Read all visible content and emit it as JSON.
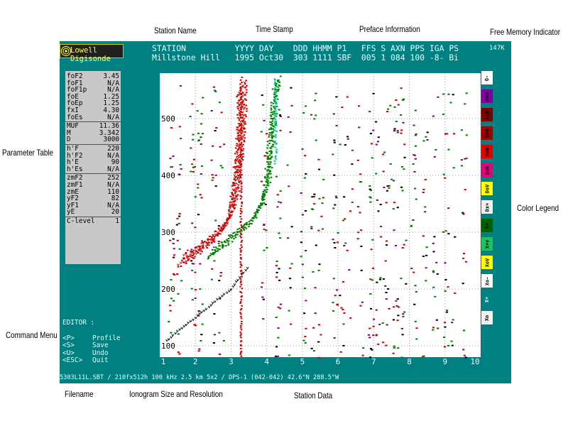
{
  "callouts": {
    "station_name": "Station Name",
    "time_stamp": "Time Stamp",
    "preface_information": "Preface Information",
    "free_memory_indicator": "Free Memory Indicator",
    "parameter_table": "Parameter Table",
    "color_legend": "Color Legend",
    "command_menu": "Command Menu",
    "filename": "Filename",
    "ionogram_size_resolution": "Ionogram Size and Resolution",
    "station_data": "Station Data"
  },
  "logo": {
    "text": "Lowell Digisonde"
  },
  "header": {
    "line1": "STATION          YYYY DAY    DDD HHMM P1   FFS S AXN PPS IGA PS",
    "line2": "Millstone Hill   1995 Oct30  303 1111 SBF  005 1 084 100 -8- Bi",
    "free_memory": "147K"
  },
  "parameters": {
    "group1": [
      {
        "k": "foF2",
        "v": "3.45"
      },
      {
        "k": "foF1",
        "v": "N/A"
      },
      {
        "k": "foF1p",
        "v": "N/A"
      },
      {
        "k": "foE",
        "v": "1.25"
      },
      {
        "k": "foEp",
        "v": "1.25"
      },
      {
        "k": "fxI",
        "v": "4.30"
      },
      {
        "k": "foEs",
        "v": "N/A"
      }
    ],
    "group2": [
      {
        "k": "MUF",
        "v": "11.36"
      },
      {
        "k": "M",
        "v": "3.342"
      },
      {
        "k": "D",
        "v": "3000"
      }
    ],
    "group3": [
      {
        "k": "h'F",
        "v": "220"
      },
      {
        "k": "h'F2",
        "v": "N/A"
      },
      {
        "k": "h'E",
        "v": "90"
      },
      {
        "k": "h'Es",
        "v": "N/A"
      }
    ],
    "group4": [
      {
        "k": "zmF2",
        "v": "252"
      },
      {
        "k": "zmF1",
        "v": "N/A"
      },
      {
        "k": "zmE",
        "v": "110"
      },
      {
        "k": "yF2",
        "v": "82"
      },
      {
        "k": "yF1",
        "v": "N/A"
      },
      {
        "k": "yE",
        "v": "20"
      }
    ],
    "group5": [
      {
        "k": "C-level",
        "v": "1"
      }
    ]
  },
  "editor": {
    "title": "EDITOR :",
    "commands": [
      {
        "key": "<P>",
        "label": "Profile"
      },
      {
        "key": "<S>",
        "label": "Save"
      },
      {
        "key": "<U>",
        "label": "Undo"
      },
      {
        "key": "<ESC>",
        "label": "Quit"
      }
    ]
  },
  "status_line": "5303L11L.SBT / 210fx512h 100 kHz 2.5 km 5x2 / DPS-1 (042-042) 42.6°N 288.5°W",
  "legend": [
    {
      "label": "O-",
      "bg": "#ffffff",
      "fg": "#000000"
    },
    {
      "label": "DoS",
      "bg": "#8000a0",
      "fg": "#000000"
    },
    {
      "label": "DoE",
      "bg": "#800000",
      "fg": "#000000"
    },
    {
      "label": "DoN",
      "bg": "#a00000",
      "fg": "#000000"
    },
    {
      "label": "DoW",
      "bg": "#e00000",
      "fg": "#000000"
    },
    {
      "label": "DoR",
      "bg": "#e00080",
      "fg": "#000000"
    },
    {
      "label": "DoV",
      "bg": "#ffff00",
      "fg": "#000000"
    },
    {
      "label": "Dx+",
      "bg": "#f0f0f0",
      "fg": "#000000"
    },
    {
      "label": "X+",
      "bg": "#006000",
      "fg": "#000000"
    },
    {
      "label": "X+v",
      "bg": "#20c060",
      "fg": "#000000"
    },
    {
      "label": "XoV",
      "bg": "#ffff00",
      "fg": "#000000"
    },
    {
      "label": "Xo-",
      "bg": "#ffffff",
      "fg": "#000000"
    },
    {
      "label": "X+",
      "bg": "#008080",
      "fg": "#ffffff"
    },
    {
      "label": "Xo",
      "bg": "#f0f0f0",
      "fg": "#000000"
    }
  ],
  "colors": {
    "teal": "#008080",
    "o_trace": "#cc0000",
    "x_trace": "#008000",
    "x_vertical": "#00cc99",
    "e_layer": "#000000",
    "magenta": "#800080"
  },
  "chart_data": {
    "type": "scatter",
    "xlabel": "",
    "ylabel": "",
    "xlim": [
      1,
      10
    ],
    "ylim": [
      80,
      580
    ],
    "x_ticks": [
      "1",
      "2",
      "3",
      "4",
      "5",
      "6",
      "7",
      "8",
      "9",
      "10"
    ],
    "y_ticks": [
      "100",
      "200",
      "300",
      "400",
      "500"
    ],
    "grid": "dotted",
    "series": [
      {
        "name": "O",
        "traces": [
          [
            1.6,
            250
          ],
          [
            2.0,
            265
          ],
          [
            2.5,
            290
          ],
          [
            2.8,
            310
          ],
          [
            3.0,
            330
          ],
          [
            3.1,
            360
          ],
          [
            3.2,
            420
          ],
          [
            3.3,
            500
          ],
          [
            3.3,
            560
          ]
        ]
      },
      {
        "name": "X",
        "traces": [
          [
            2.4,
            260
          ],
          [
            2.8,
            280
          ],
          [
            3.2,
            300
          ],
          [
            3.5,
            315
          ],
          [
            3.8,
            340
          ],
          [
            4.0,
            380
          ],
          [
            4.1,
            440
          ],
          [
            4.2,
            520
          ],
          [
            4.3,
            570
          ]
        ]
      },
      {
        "name": "E",
        "traces": [
          [
            1.0,
            100
          ],
          [
            1.5,
            125
          ],
          [
            2.0,
            150
          ],
          [
            2.5,
            175
          ],
          [
            3.0,
            200
          ],
          [
            3.3,
            225
          ],
          [
            3.5,
            240
          ]
        ]
      }
    ]
  }
}
